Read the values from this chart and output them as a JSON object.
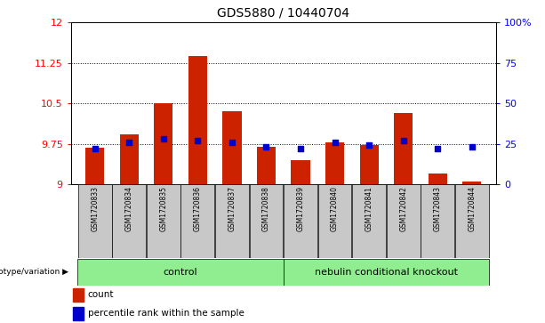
{
  "title": "GDS5880 / 10440704",
  "samples": [
    "GSM1720833",
    "GSM1720834",
    "GSM1720835",
    "GSM1720836",
    "GSM1720837",
    "GSM1720838",
    "GSM1720839",
    "GSM1720840",
    "GSM1720841",
    "GSM1720842",
    "GSM1720843",
    "GSM1720844"
  ],
  "count_values": [
    9.68,
    9.92,
    10.5,
    11.38,
    10.35,
    9.7,
    9.45,
    9.78,
    9.72,
    10.32,
    9.2,
    9.04
  ],
  "percentile_values": [
    22,
    26,
    28,
    27,
    26,
    23,
    22,
    26,
    24,
    27,
    22,
    23
  ],
  "ymin": 9,
  "ymax": 12,
  "yticks_left": [
    9,
    9.75,
    10.5,
    11.25,
    12
  ],
  "yticks_right": [
    0,
    25,
    50,
    75,
    100
  ],
  "bar_color": "#cc2200",
  "dot_color": "#0000cc",
  "gridline_values": [
    9.75,
    10.5,
    11.25
  ],
  "control_samples": 6,
  "control_label": "control",
  "ko_label": "nebulin conditional knockout",
  "group_bg": "#90ee90",
  "sample_bg": "#c8c8c8",
  "genotype_label": "genotype/variation",
  "legend_count_label": "count",
  "legend_pct_label": "percentile rank within the sample",
  "bar_width": 0.55,
  "bar_baseline": 9,
  "title_fontsize": 10
}
